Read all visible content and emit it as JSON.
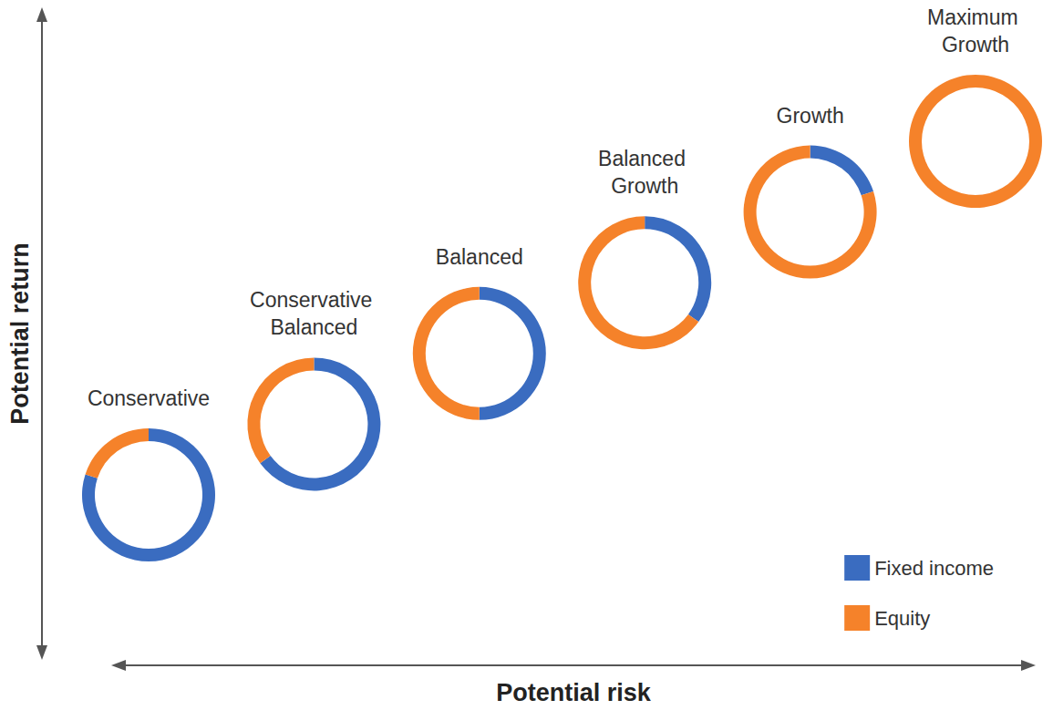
{
  "chart_data": {
    "type": "donut",
    "x_label": "Potential risk",
    "y_label": "Potential return",
    "categories": [
      "Conservative",
      "Conservative Balanced",
      "Balanced",
      "Balanced Growth",
      "Growth",
      "Maximum Growth"
    ],
    "series": [
      {
        "name": "Fixed income",
        "color": "#3a6cc0",
        "values": [
          80,
          65,
          50,
          35,
          20,
          0
        ]
      },
      {
        "name": "Equity",
        "color": "#f5822a",
        "values": [
          20,
          35,
          50,
          65,
          80,
          100
        ]
      }
    ],
    "legend": "bottom-right",
    "tick_labels": false
  }
}
